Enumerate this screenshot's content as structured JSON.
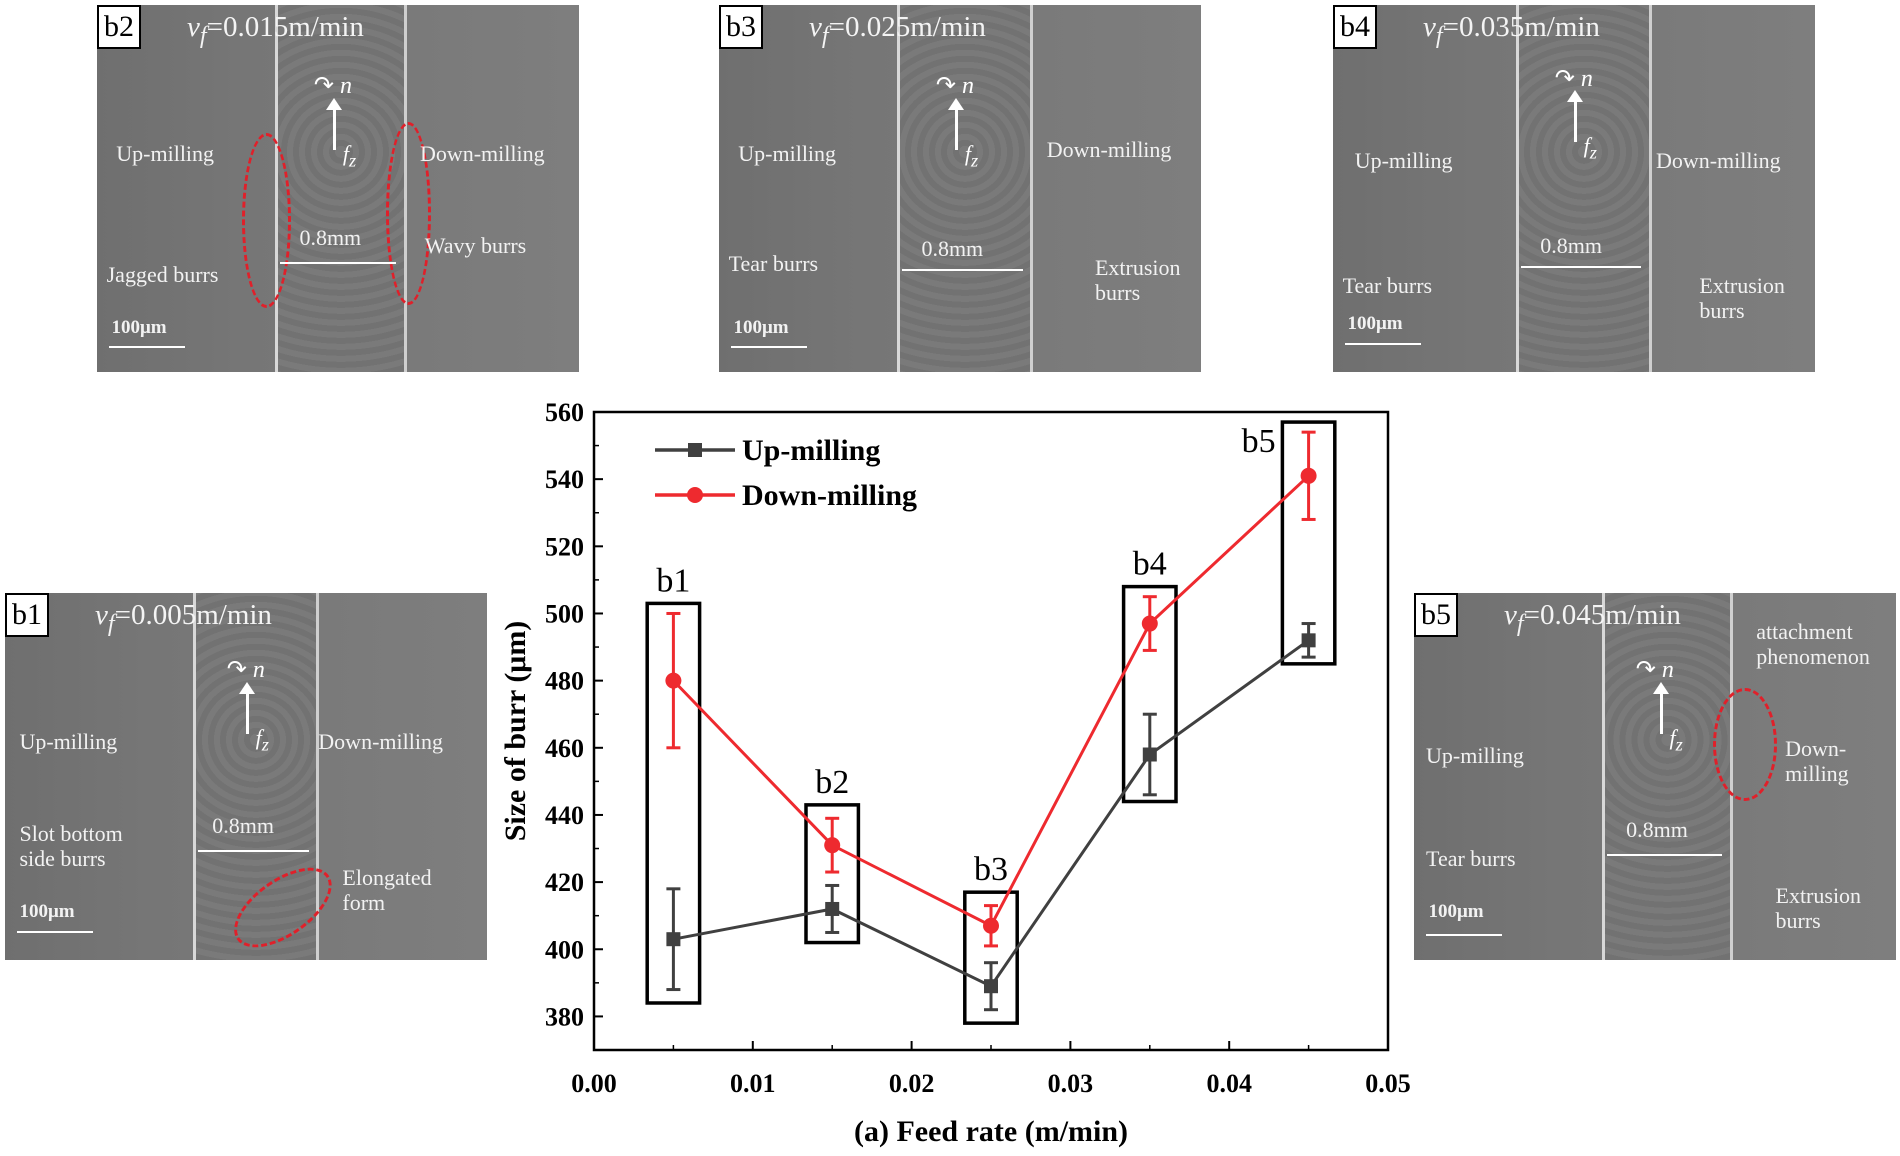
{
  "chart_data": {
    "type": "line",
    "xlabel": "(a) Feed rate (m/min)",
    "ylabel": "Size of burr (μm)",
    "xlim": [
      0.0,
      0.05
    ],
    "ylim": [
      370,
      560
    ],
    "xticks": [
      "0.00",
      "0.01",
      "0.02",
      "0.03",
      "0.04",
      "0.05"
    ],
    "xtick_values": [
      0,
      0.01,
      0.02,
      0.03,
      0.04,
      0.05
    ],
    "yticks": [
      "380",
      "400",
      "420",
      "440",
      "460",
      "480",
      "500",
      "520",
      "540",
      "560"
    ],
    "ytick_values": [
      380,
      400,
      420,
      440,
      460,
      480,
      500,
      520,
      540,
      560
    ],
    "x": [
      0.005,
      0.015,
      0.025,
      0.035,
      0.045
    ],
    "legend_position": "top-left",
    "series": [
      {
        "name": "Up-milling",
        "color": "#404040",
        "marker": "square",
        "values": [
          403,
          412,
          389,
          458,
          492
        ],
        "err_low": [
          388,
          405,
          382,
          446,
          487
        ],
        "err_high": [
          418,
          419,
          396,
          470,
          497
        ]
      },
      {
        "name": "Down-milling",
        "color": "#ee2a2f",
        "marker": "circle",
        "values": [
          480,
          431,
          407,
          497,
          541
        ],
        "err_low": [
          460,
          423,
          401,
          489,
          528
        ],
        "err_high": [
          500,
          439,
          413,
          505,
          554
        ]
      }
    ],
    "annotations": [
      {
        "label": "b1",
        "x": 0.005,
        "box": [
          384,
          503
        ]
      },
      {
        "label": "b2",
        "x": 0.015,
        "box": [
          402,
          443
        ]
      },
      {
        "label": "b3",
        "x": 0.025,
        "box": [
          378,
          417
        ]
      },
      {
        "label": "b4",
        "x": 0.035,
        "box": [
          444,
          508
        ]
      },
      {
        "label": "b5",
        "x": 0.045,
        "box": [
          485,
          557
        ]
      }
    ]
  },
  "panels": {
    "b1": {
      "tag": "b1",
      "vf": "=0.005m/min",
      "up": "Up-milling",
      "down": "Down-milling",
      "width": "0.8mm",
      "scale": "100μm",
      "note1": "Slot bottom\nside burrs",
      "note2": "Elongated\nform"
    },
    "b2": {
      "tag": "b2",
      "vf": "=0.015m/min",
      "up": "Up-milling",
      "down": "Down-milling",
      "width": "0.8mm",
      "scale": "100μm",
      "note1": "Jagged burrs",
      "note2": "Wavy burrs"
    },
    "b3": {
      "tag": "b3",
      "vf": "=0.025m/min",
      "up": "Up-milling",
      "down": "Down-milling",
      "width": "0.8mm",
      "scale": "100μm",
      "note1": "Tear burrs",
      "note2": "Extrusion\nburrs"
    },
    "b4": {
      "tag": "b4",
      "vf": "=0.035m/min",
      "up": "Up-milling",
      "down": "Down-milling",
      "width": "0.8mm",
      "scale": "100μm",
      "note1": "Tear burrs",
      "note2": "Extrusion\nburrs"
    },
    "b5": {
      "tag": "b5",
      "vf": "=0.045m/min",
      "up": "Up-milling",
      "down": "Down-\nmilling",
      "width": "0.8mm",
      "scale": "100μm",
      "note1": "Tear burrs",
      "note2": "Extrusion\nburrs",
      "note3": "attachment\nphenomenon"
    }
  },
  "symbols": {
    "vf_symbol": "v",
    "vf_sub": "f",
    "rotation": "n",
    "feed": "f",
    "feed_sub": "z",
    "rotation_arrow": "↷"
  }
}
